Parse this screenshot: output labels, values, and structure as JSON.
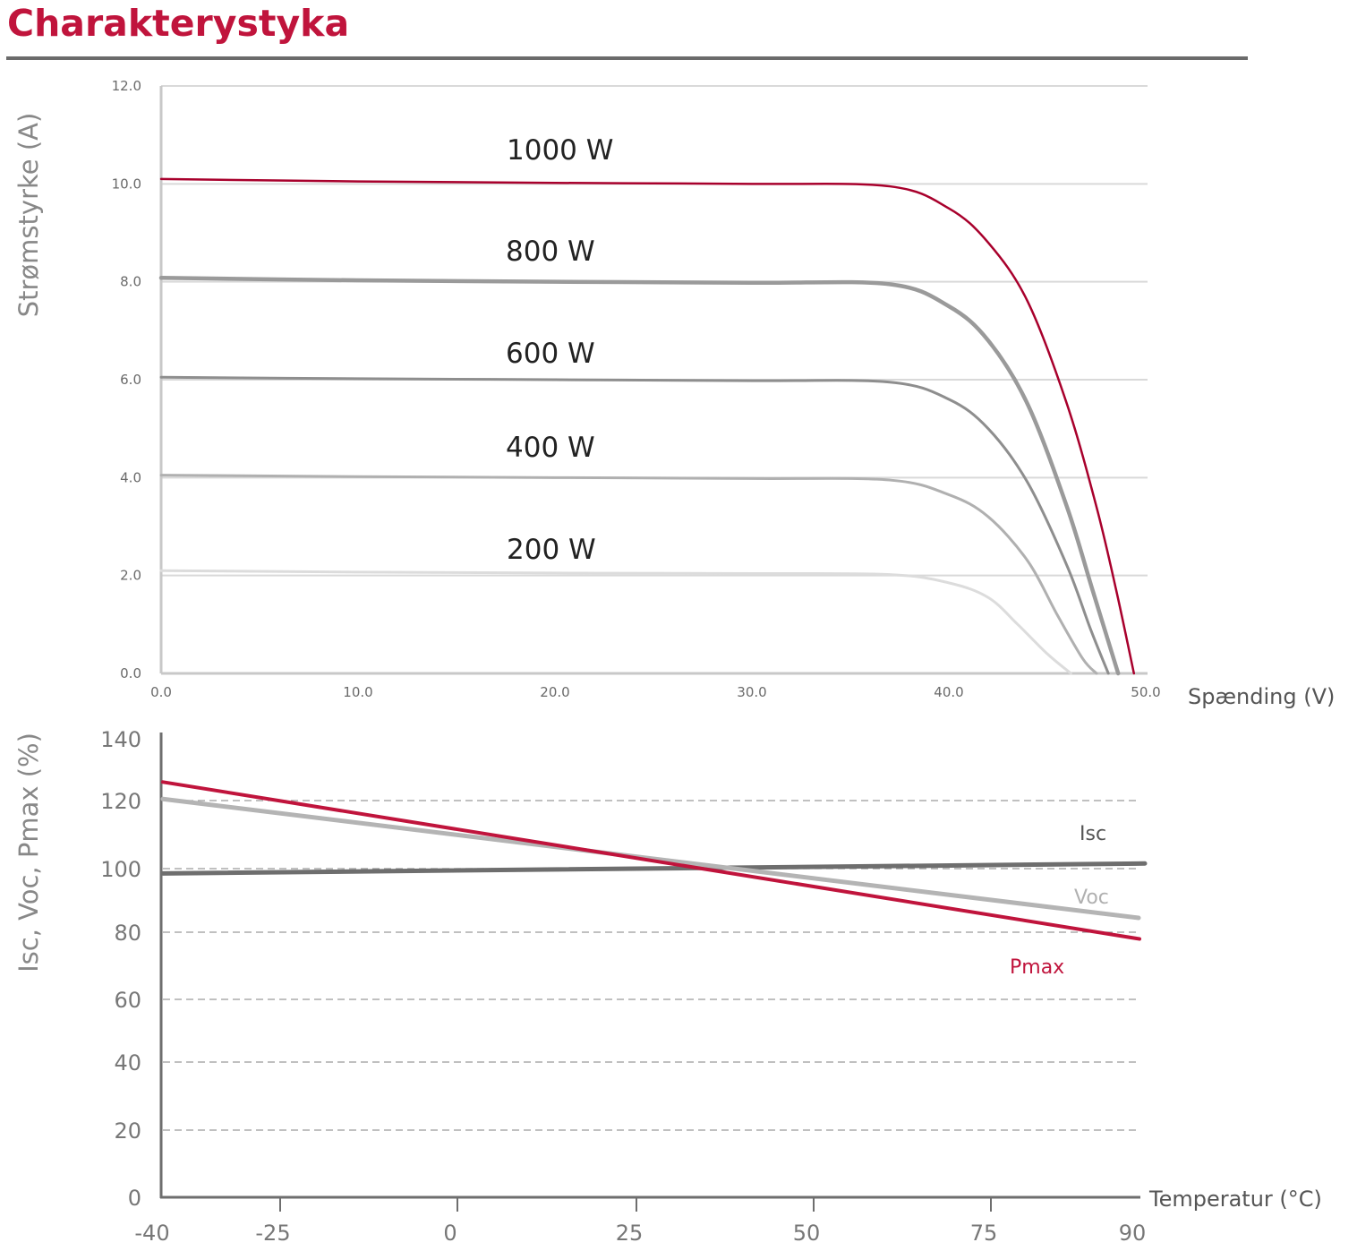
{
  "title": "Charakterystyka",
  "colors": {
    "title": "#c0143c",
    "accent_red": "#a8002c",
    "pmax_red": "#c0143c",
    "gray_dark": "#6e6e6e",
    "gray_mid": "#9a9a9a",
    "gray_light": "#b4b4b4",
    "gray_lighter": "#dcdcdc",
    "grid": "#d9d9d9"
  },
  "chart_data": [
    {
      "type": "line",
      "title": "I-V Characteristic",
      "xlabel": "Spænding (V)",
      "ylabel": "Strømstyrke (A)",
      "xlim": [
        0,
        50
      ],
      "ylim": [
        0,
        12
      ],
      "x_ticks": [
        "0.0",
        "10.0",
        "20.0",
        "30.0",
        "40.0",
        "50.0"
      ],
      "y_ticks": [
        "0.0",
        "2.0",
        "4.0",
        "6.0",
        "8.0",
        "10.0",
        "12.0"
      ],
      "grid": "horizontal",
      "series": [
        {
          "name": "1000 W",
          "color": "#a8002c",
          "width": 2.5,
          "isc": 10.1,
          "knee_v": 37.5,
          "i_knee": 9.95,
          "voc": 49.4,
          "points": [
            [
              0,
              10.1
            ],
            [
              10,
              10.05
            ],
            [
              20,
              10.02
            ],
            [
              30,
              10.0
            ],
            [
              37,
              9.95
            ],
            [
              40,
              9.5
            ],
            [
              42,
              8.8
            ],
            [
              44,
              7.6
            ],
            [
              46,
              5.5
            ],
            [
              47.5,
              3.4
            ],
            [
              48.5,
              1.7
            ],
            [
              49.4,
              0
            ]
          ]
        },
        {
          "name": "800 W",
          "color": "#9a9a9a",
          "width": 4.5,
          "isc": 8.08,
          "knee_v": 37.5,
          "i_knee": 7.95,
          "voc": 48.6,
          "points": [
            [
              0,
              8.08
            ],
            [
              10,
              8.03
            ],
            [
              20,
              8.0
            ],
            [
              30,
              7.98
            ],
            [
              37,
              7.95
            ],
            [
              40,
              7.5
            ],
            [
              42,
              6.8
            ],
            [
              44,
              5.5
            ],
            [
              46,
              3.4
            ],
            [
              47.3,
              1.7
            ],
            [
              48.6,
              0
            ]
          ]
        },
        {
          "name": "600 W",
          "color": "#8e8e8e",
          "width": 3,
          "isc": 6.05,
          "knee_v": 37.5,
          "i_knee": 5.95,
          "voc": 48.1,
          "points": [
            [
              0,
              6.05
            ],
            [
              10,
              6.02
            ],
            [
              20,
              6.0
            ],
            [
              30,
              5.98
            ],
            [
              37,
              5.95
            ],
            [
              40,
              5.6
            ],
            [
              42,
              5.0
            ],
            [
              44,
              3.9
            ],
            [
              46,
              2.2
            ],
            [
              47.2,
              0.9
            ],
            [
              48.1,
              0
            ]
          ]
        },
        {
          "name": "400 W",
          "color": "#b0b0b0",
          "width": 3,
          "isc": 4.05,
          "knee_v": 37.5,
          "i_knee": 3.95,
          "voc": 47.5,
          "points": [
            [
              0,
              4.05
            ],
            [
              10,
              4.02
            ],
            [
              20,
              4.0
            ],
            [
              30,
              3.98
            ],
            [
              37,
              3.95
            ],
            [
              40,
              3.65
            ],
            [
              42,
              3.2
            ],
            [
              44,
              2.3
            ],
            [
              45.5,
              1.2
            ],
            [
              46.8,
              0.3
            ],
            [
              47.5,
              0
            ]
          ]
        },
        {
          "name": "200 W",
          "color": "#dcdcdc",
          "width": 3,
          "isc": 2.1,
          "knee_v": 37.5,
          "i_knee": 2.02,
          "voc": 46.2,
          "points": [
            [
              0,
              2.1
            ],
            [
              10,
              2.07
            ],
            [
              20,
              2.05
            ],
            [
              30,
              2.04
            ],
            [
              37,
              2.02
            ],
            [
              40,
              1.85
            ],
            [
              42,
              1.55
            ],
            [
              43.5,
              1.0
            ],
            [
              45,
              0.4
            ],
            [
              46.2,
              0
            ]
          ]
        }
      ],
      "curve_labels": [
        "1000 W",
        "800 W",
        "600 W",
        "400 W",
        "200 W"
      ]
    },
    {
      "type": "line",
      "title": "Temperature Characteristic",
      "xlabel": "Temperatur (°C)",
      "ylabel": "Isc, Voc, Pmax (%)",
      "xlim": [
        -40,
        90
      ],
      "ylim": [
        0,
        140
      ],
      "x_ticks": [
        "-40",
        "-25",
        "0",
        "25",
        "50",
        "75",
        "90"
      ],
      "y_ticks": [
        "0",
        "20",
        "40",
        "60",
        "80",
        "100",
        "120",
        "140"
      ],
      "grid": "horizontal-dashed",
      "series": [
        {
          "name": "Isc",
          "color": "#6e6e6e",
          "x": [
            -40,
            90
          ],
          "values": [
            98.5,
            101.5
          ]
        },
        {
          "name": "Voc",
          "color": "#b4b4b4",
          "x": [
            -40,
            90
          ],
          "values": [
            120.5,
            84.5
          ]
        },
        {
          "name": "Pmax",
          "color": "#c0143c",
          "x": [
            -40,
            90
          ],
          "values": [
            126,
            78
          ]
        }
      ],
      "legend_labels": [
        {
          "name": "Isc",
          "color": "#555555"
        },
        {
          "name": "Voc",
          "color": "#b0b0b0"
        },
        {
          "name": "Pmax",
          "color": "#c0143c"
        }
      ]
    }
  ]
}
